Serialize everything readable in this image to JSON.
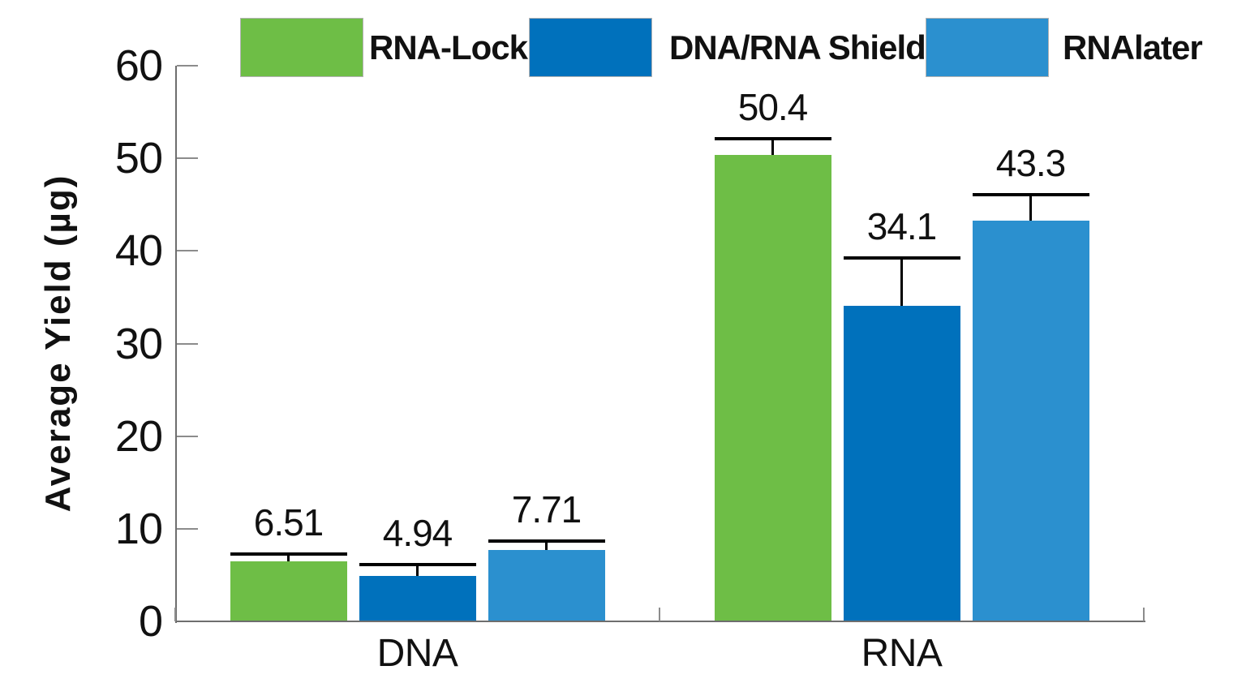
{
  "chart_data": {
    "type": "bar",
    "title": "",
    "xlabel": "",
    "ylabel": "Average Yield (µg)",
    "ylim": [
      0,
      60
    ],
    "yticks": [
      0,
      10,
      20,
      30,
      40,
      50,
      60
    ],
    "categories": [
      "DNA",
      "RNA"
    ],
    "series": [
      {
        "name": "RNA-Lock",
        "color": "#6ebe46",
        "values": [
          6.51,
          50.4
        ],
        "errors_plus": [
          0.8,
          1.7
        ],
        "labels": [
          "6.51",
          "50.4"
        ]
      },
      {
        "name": "DNA/RNA Shield",
        "color": "#0071bc",
        "values": [
          4.94,
          34.1
        ],
        "errors_plus": [
          1.2,
          5.1
        ],
        "labels": [
          "4.94",
          "34.1"
        ]
      },
      {
        "name": "RNAlater",
        "color": "#2b90cf",
        "values": [
          7.71,
          43.3
        ],
        "errors_plus": [
          1.0,
          2.8
        ],
        "labels": [
          "7.71",
          "43.3"
        ]
      }
    ],
    "legend": {
      "position": "top",
      "entries": [
        "RNA-Lock",
        "DNA/RNA Shield",
        "RNAlater"
      ]
    },
    "grid": false,
    "error_bars": {
      "direction": "upper",
      "cap_width": "bar-width",
      "color": "#000000"
    },
    "axis_color": "#6e6e6e",
    "tick_color": "#8c8c8c",
    "text_color": "#111111"
  }
}
